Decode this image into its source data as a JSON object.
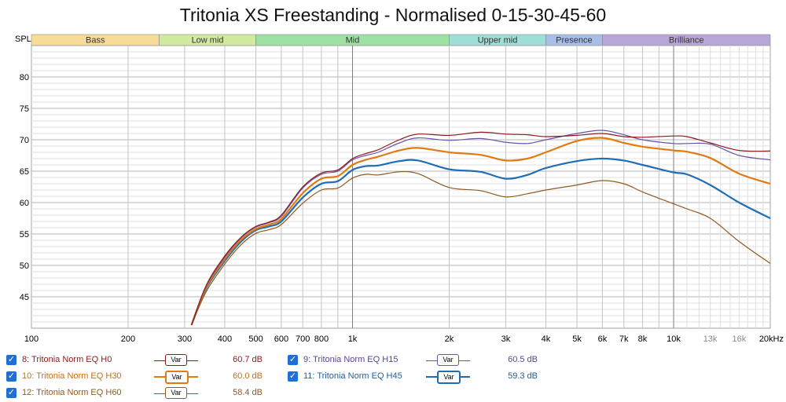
{
  "chart_data": {
    "type": "line",
    "title": "Tritonia XS Freestanding - Normalised 0-15-30-45-60",
    "ylabel": "SPL",
    "x_unit": "Hz",
    "x_scale": "log",
    "xlim": [
      100,
      20000
    ],
    "ylim": [
      40,
      85
    ],
    "x_tick_labels": [
      {
        "f": 100,
        "label": "100"
      },
      {
        "f": 200,
        "label": "200"
      },
      {
        "f": 300,
        "label": "300"
      },
      {
        "f": 400,
        "label": "400"
      },
      {
        "f": 500,
        "label": "500"
      },
      {
        "f": 600,
        "label": "600"
      },
      {
        "f": 700,
        "label": "700"
      },
      {
        "f": 800,
        "label": "800"
      },
      {
        "f": 1000,
        "label": "1k"
      },
      {
        "f": 2000,
        "label": "2k"
      },
      {
        "f": 3000,
        "label": "3k"
      },
      {
        "f": 4000,
        "label": "4k"
      },
      {
        "f": 5000,
        "label": "5k"
      },
      {
        "f": 6000,
        "label": "6k"
      },
      {
        "f": 7000,
        "label": "7k"
      },
      {
        "f": 8000,
        "label": "8k"
      },
      {
        "f": 10000,
        "label": "10k"
      },
      {
        "f": 13000,
        "label": "13k"
      },
      {
        "f": 16000,
        "label": "16k"
      },
      {
        "f": 20000,
        "label": "20kHz"
      }
    ],
    "y_tick_labels": [
      "45",
      "50",
      "55",
      "60",
      "65",
      "70",
      "75",
      "80"
    ],
    "y_ticks": [
      45,
      50,
      55,
      60,
      65,
      70,
      75,
      80
    ],
    "grid": true,
    "bands": [
      {
        "name": "Bass",
        "from": 100,
        "to": 250,
        "color": "#f7dc97"
      },
      {
        "name": "Low mid",
        "from": 250,
        "to": 500,
        "color": "#d2ea9f"
      },
      {
        "name": "Mid",
        "from": 500,
        "to": 2000,
        "color": "#9fe0a4"
      },
      {
        "name": "Upper mid",
        "from": 2000,
        "to": 4000,
        "color": "#9fddd8"
      },
      {
        "name": "Presence",
        "from": 4000,
        "to": 6000,
        "color": "#a7bfe8"
      },
      {
        "name": "Brilliance",
        "from": 6000,
        "to": 20000,
        "color": "#b7a6d6"
      }
    ],
    "series": [
      {
        "name": "8: Tritonia  Norm EQ H0",
        "color": "#8b1a1a",
        "width": 1.2,
        "level": "60.7 dB",
        "x": [
          315,
          350,
          400,
          450,
          500,
          550,
          600,
          700,
          800,
          900,
          1000,
          1100,
          1200,
          1400,
          1600,
          2000,
          2500,
          3000,
          3500,
          4000,
          5000,
          6000,
          7000,
          8000,
          10000,
          11000,
          13000,
          16000,
          20000
        ],
        "y": [
          40.5,
          46.8,
          51.5,
          54.5,
          56.2,
          56.9,
          58.0,
          62.5,
          64.7,
          65.2,
          67.0,
          67.8,
          68.4,
          70.0,
          70.9,
          70.7,
          71.2,
          70.9,
          70.8,
          70.5,
          70.7,
          71.0,
          70.5,
          70.4,
          70.6,
          70.5,
          69.5,
          68.3,
          68.2
        ]
      },
      {
        "name": "9: Tritonia  Norm EQ H15",
        "color": "#6a52a8",
        "width": 1.2,
        "level": "60.5 dB",
        "x": [
          315,
          350,
          400,
          450,
          500,
          550,
          600,
          700,
          800,
          900,
          1000,
          1100,
          1200,
          1400,
          1600,
          2000,
          2500,
          3000,
          3500,
          4000,
          5000,
          6000,
          7000,
          8000,
          10000,
          11000,
          13000,
          16000,
          20000
        ],
        "y": [
          40.5,
          46.7,
          51.3,
          54.4,
          56.1,
          56.8,
          57.8,
          62.3,
          64.5,
          65.0,
          66.8,
          67.5,
          68.0,
          69.5,
          70.3,
          69.9,
          70.2,
          69.6,
          69.4,
          70.0,
          71.0,
          71.5,
          70.8,
          70.0,
          69.4,
          69.4,
          69.3,
          67.5,
          66.8
        ]
      },
      {
        "name": "10: Tritonia  Norm EQ H30",
        "color": "#e07b12",
        "width": 2.2,
        "level": "60.0 dB",
        "x": [
          315,
          350,
          400,
          450,
          500,
          550,
          600,
          700,
          800,
          900,
          1000,
          1100,
          1200,
          1400,
          1600,
          2000,
          2500,
          3000,
          3500,
          4000,
          5000,
          6000,
          7000,
          8000,
          10000,
          11000,
          13000,
          16000,
          20000
        ],
        "y": [
          40.5,
          46.5,
          51.0,
          54.1,
          55.8,
          56.5,
          57.4,
          61.5,
          63.8,
          64.2,
          66.0,
          66.8,
          67.3,
          68.3,
          68.7,
          68.0,
          67.6,
          66.7,
          67.0,
          68.0,
          69.8,
          70.3,
          69.5,
          68.9,
          68.3,
          68.1,
          67.1,
          64.6,
          63.0
        ]
      },
      {
        "name": "11: Tritonia  Norm EQ H45",
        "color": "#1e6db5",
        "width": 2.2,
        "level": "59.3 dB",
        "x": [
          315,
          350,
          400,
          450,
          500,
          550,
          600,
          700,
          800,
          900,
          1000,
          1100,
          1200,
          1400,
          1600,
          2000,
          2500,
          3000,
          3500,
          4000,
          5000,
          6000,
          7000,
          8000,
          10000,
          11000,
          13000,
          16000,
          20000
        ],
        "y": [
          40.5,
          46.3,
          50.7,
          53.8,
          55.6,
          56.2,
          57.0,
          60.8,
          63.0,
          63.4,
          65.2,
          65.8,
          65.9,
          66.6,
          66.7,
          65.3,
          64.9,
          63.8,
          64.4,
          65.5,
          66.6,
          67.0,
          66.7,
          66.0,
          64.8,
          64.5,
          62.8,
          60.0,
          57.5
        ]
      },
      {
        "name": "12: Tritonia  Norm EQ H60",
        "color": "#8e5a20",
        "width": 1.2,
        "level": "58.4 dB",
        "x": [
          315,
          350,
          400,
          450,
          500,
          550,
          600,
          700,
          800,
          900,
          1000,
          1100,
          1200,
          1400,
          1600,
          2000,
          2500,
          3000,
          3500,
          4000,
          5000,
          6000,
          7000,
          8000,
          10000,
          11000,
          13000,
          16000,
          20000
        ],
        "y": [
          40.5,
          45.8,
          50.2,
          53.3,
          55.1,
          55.7,
          56.5,
          59.9,
          62.0,
          62.3,
          63.9,
          64.5,
          64.4,
          64.9,
          64.6,
          62.4,
          61.9,
          60.9,
          61.4,
          62.0,
          62.8,
          63.5,
          63.0,
          61.7,
          59.8,
          59.0,
          57.5,
          53.8,
          50.3
        ]
      }
    ]
  },
  "legend": {
    "var_label": "Var",
    "check_glyph": "✓",
    "items": [
      {
        "label": "8: Tritonia  Norm EQ H0",
        "db": "60.7 dB",
        "color": "#8b1a1a",
        "text_color": "#8b1a1a"
      },
      {
        "label": "10: Tritonia  Norm EQ H30",
        "db": "60.0 dB",
        "color": "#e07b12",
        "text_color": "#c8700e"
      },
      {
        "label": "12: Tritonia  Norm EQ H60",
        "db": "58.4 dB",
        "color": "#8e5a20",
        "text_color": "#8e5a20"
      },
      {
        "label": "9: Tritonia  Norm EQ H15",
        "db": "60.5 dB",
        "color": "#6a52a8",
        "text_color": "#5a4494"
      },
      {
        "label": "11: Tritonia  Norm EQ H45",
        "db": "59.3 dB",
        "color": "#1e6db5",
        "text_color": "#1e5e9e"
      }
    ]
  }
}
